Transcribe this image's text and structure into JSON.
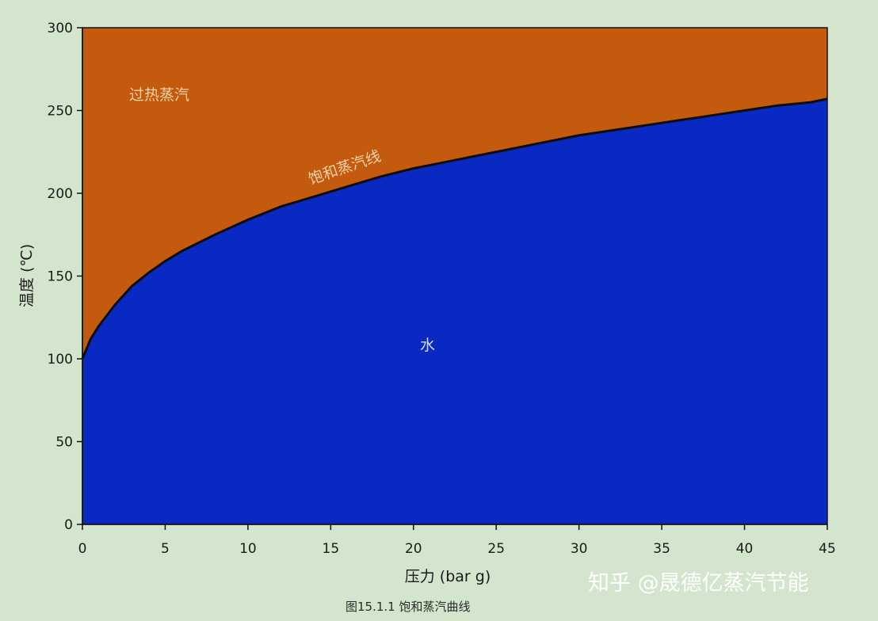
{
  "chart_data": {
    "type": "area",
    "xlabel": "压力 (bar g)",
    "ylabel": "温度 (℃)",
    "xlim": [
      0,
      45
    ],
    "ylim": [
      0,
      300
    ],
    "xticks": [
      0,
      5,
      10,
      15,
      20,
      25,
      30,
      35,
      40,
      45
    ],
    "yticks": [
      0,
      50,
      100,
      150,
      200,
      250,
      300
    ],
    "grid": false,
    "curve_label": "饱和蒸汽线",
    "regions": {
      "above_curve": "过热蒸汽",
      "below_curve": "水"
    },
    "series": [
      {
        "name": "饱和蒸汽线",
        "x": [
          0,
          0.5,
          1,
          2,
          3,
          4,
          5,
          6,
          8,
          10,
          12,
          14,
          16,
          18,
          20,
          22,
          24,
          26,
          28,
          30,
          32,
          34,
          36,
          38,
          40,
          42,
          44,
          45
        ],
        "y": [
          100,
          112,
          120,
          133,
          144,
          152,
          159,
          165,
          175,
          184,
          192,
          198,
          204,
          210,
          215,
          219,
          223,
          227,
          231,
          235,
          238,
          241,
          244,
          247,
          250,
          253,
          255,
          257
        ]
      }
    ],
    "colors": {
      "superheated": "#c35a0e",
      "water": "#0a28c2",
      "curve": "#0d0d0d",
      "superheated_label": "#f1d3a8",
      "water_label": "#d8dcff"
    }
  },
  "caption": "图15.1.1  饱和蒸汽曲线",
  "watermark": "知乎 @晟德亿蒸汽节能"
}
